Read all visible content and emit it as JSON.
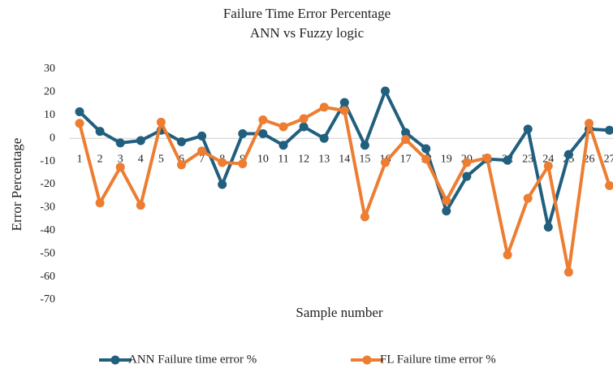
{
  "chart_data": {
    "type": "line",
    "title": "Failure Time Error Percentage",
    "subtitle": "ANN vs Fuzzy logic",
    "x_label": "Sample number",
    "y_label": "Error Percentage",
    "categories": [
      "1",
      "2",
      "3",
      "4",
      "5",
      "6",
      "7",
      "8",
      "9",
      "10",
      "11",
      "12",
      "13",
      "14",
      "15",
      "16",
      "17",
      "18",
      "19",
      "20",
      "21",
      "22",
      "23",
      "24",
      "25",
      "26",
      "27"
    ],
    "series": [
      {
        "name": "ANN Failure time error %",
        "color": "#215f7e",
        "values": [
          11.5,
          3,
          -2,
          -1,
          3.5,
          -1.5,
          1,
          -20,
          2,
          2,
          -3,
          5,
          0,
          15.5,
          -3,
          20.5,
          2.5,
          -4.5,
          -31.5,
          -16.5,
          -9,
          -9.5,
          4,
          -38.5,
          -7,
          4,
          3.5
        ]
      },
      {
        "name": "FL Failure time error %",
        "color": "#ed7d31",
        "values": [
          6.5,
          -28,
          -12.5,
          -29,
          7,
          -11.5,
          -5.5,
          -10.5,
          -11,
          8,
          5,
          8.5,
          13.5,
          12,
          -34,
          -10.5,
          -0.5,
          -9,
          -27,
          -10.5,
          -8.5,
          -50.5,
          -26,
          -12,
          -58,
          6.5,
          -20.5
        ]
      }
    ],
    "ylim": [
      -70,
      30
    ],
    "yticks": [
      -70,
      -60,
      -50,
      -40,
      -30,
      -20,
      -10,
      0,
      10,
      20,
      30
    ],
    "grid": false,
    "legend": "bottom"
  }
}
